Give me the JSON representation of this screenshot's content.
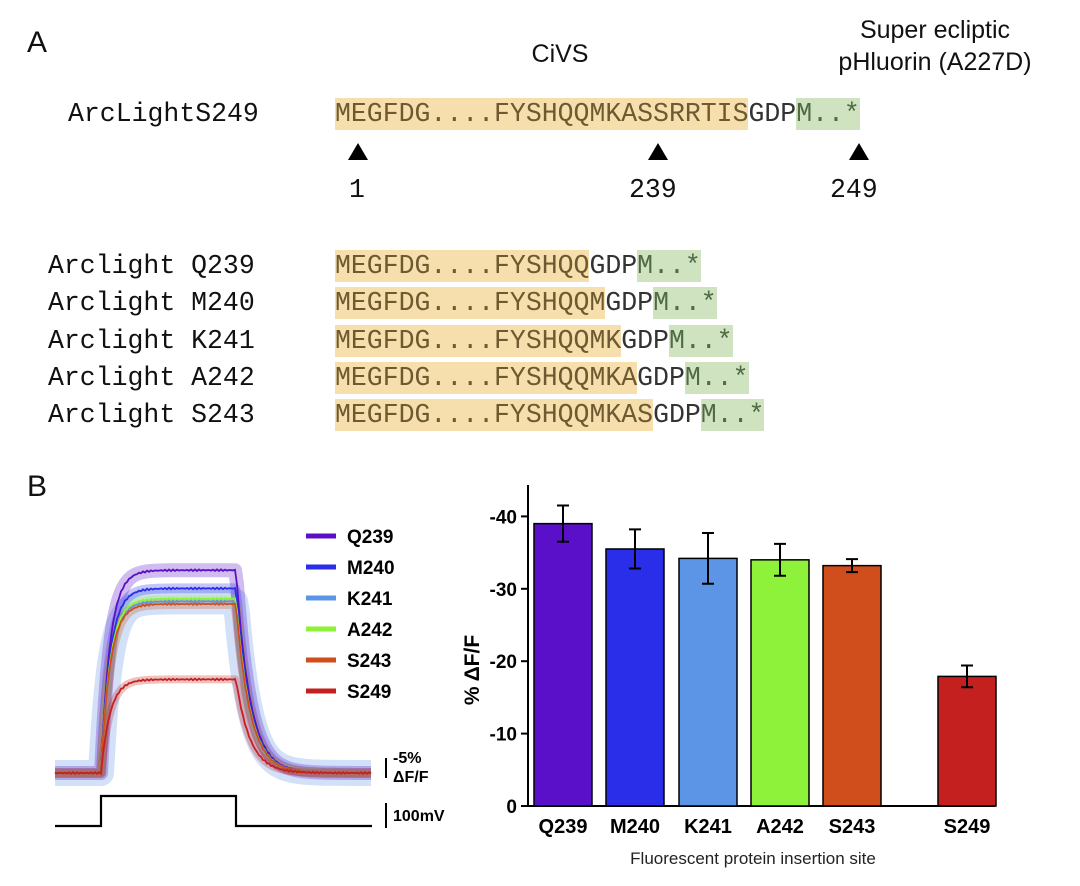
{
  "panel_a": {
    "label": "A",
    "civs_title": "CiVS",
    "sep_title_line1": "Super ecliptic",
    "sep_title_line2": "pHluorin (A227D)",
    "main": {
      "name": "ArcLightS249",
      "orange": "MEGFDG....FYSHQQMKASSRRTIS",
      "plain": "GDP",
      "green": "M..*"
    },
    "positions": [
      "1",
      "239",
      "249"
    ],
    "variants": [
      {
        "name": "Arclight Q239",
        "orange": "MEGFDG....FYSHQQ",
        "plain": "GDP",
        "green": "M..*"
      },
      {
        "name": "Arclight M240",
        "orange": "MEGFDG....FYSHQQM",
        "plain": "GDP",
        "green": "M..*"
      },
      {
        "name": "Arclight K241",
        "orange": "MEGFDG....FYSHQQMK",
        "plain": "GDP",
        "green": "M..*"
      },
      {
        "name": "Arclight A242",
        "orange": "MEGFDG....FYSHQQMKA",
        "plain": "GDP",
        "green": "M..*"
      },
      {
        "name": "Arclight S243",
        "orange": "MEGFDG....FYSHQQMKAS",
        "plain": "GDP",
        "green": "M..*"
      }
    ]
  },
  "panel_b": {
    "label": "B",
    "trace_scale_label_1": "-5%",
    "trace_scale_label_2": "ΔF/F",
    "voltage_scale_label": "100mV"
  },
  "colors": {
    "Q239": "#5a10c8",
    "M240": "#2a2ee8",
    "K241": "#5d95e6",
    "A242": "#8ef23a",
    "S243": "#cf4e1c",
    "S249": "#c4201f",
    "seq_orange": "#f7dfad",
    "seq_green": "#cfe3c1"
  },
  "chart_data": [
    {
      "type": "line",
      "legend": [
        "Q239",
        "M240",
        "K241",
        "A242",
        "S243",
        "S249"
      ],
      "legend_position": "right",
      "series": [
        {
          "name": "Q239",
          "plateau_dff": -39
        },
        {
          "name": "M240",
          "plateau_dff": -35.5
        },
        {
          "name": "K241",
          "plateau_dff": -33
        },
        {
          "name": "A242",
          "plateau_dff": -33.5
        },
        {
          "name": "S243",
          "plateau_dff": -32.5
        },
        {
          "name": "S249",
          "plateau_dff": -18
        }
      ],
      "scale_bars": {
        "dff": "-5% ΔF/F",
        "voltage": "100mV"
      }
    },
    {
      "type": "bar",
      "categories": [
        "Q239",
        "M240",
        "K241",
        "A242",
        "S243",
        "S249"
      ],
      "values": [
        -39,
        -35.5,
        -34.2,
        -34,
        -33.2,
        -17.9
      ],
      "errors": [
        2.5,
        2.7,
        3.5,
        2.2,
        0.9,
        1.5
      ],
      "ylabel": "% ΔF/F",
      "xlabel": "Fluorescent protein insertion site",
      "yticks": [
        "0",
        "-10",
        "-20",
        "-30",
        "-40"
      ],
      "ylim": [
        0,
        -45
      ],
      "grid": false
    }
  ]
}
